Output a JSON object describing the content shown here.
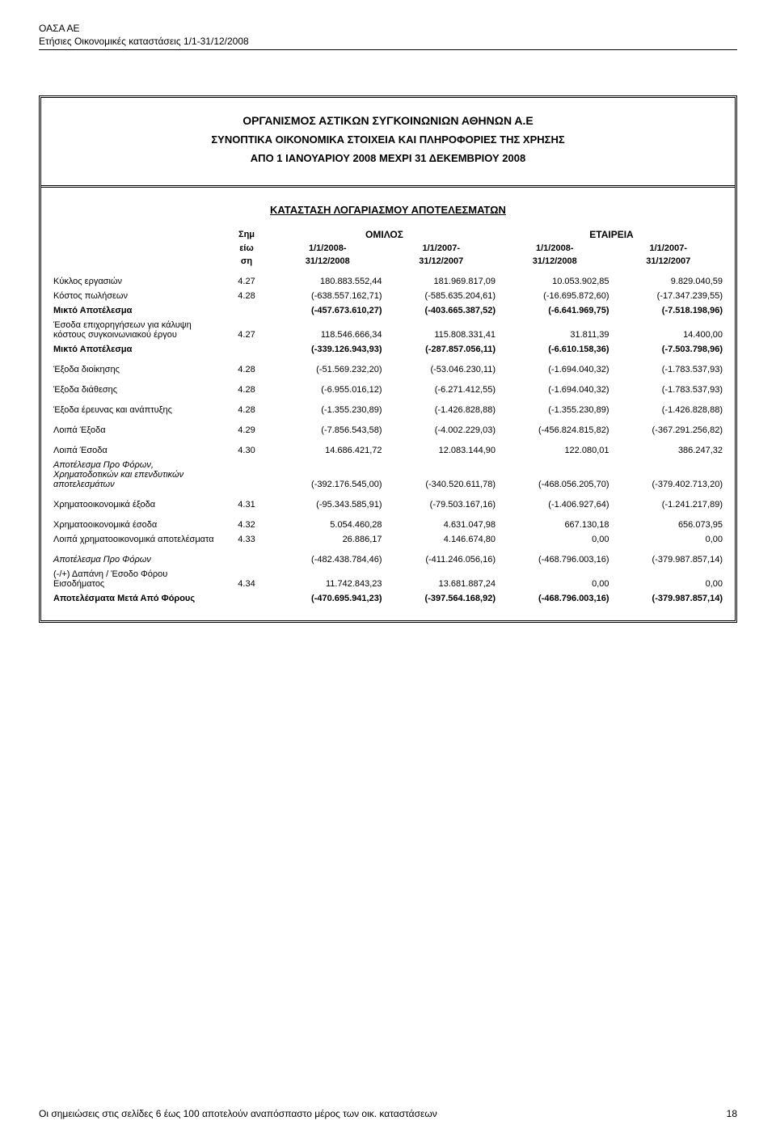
{
  "header": {
    "company": "ΟΑΣΑ ΑΕ",
    "subtitle": "Ετήσιες Οικονομικές καταστάσεις 1/1-31/12/2008"
  },
  "title_block": {
    "t1": "ΟΡΓΑΝΙΣΜΟΣ ΑΣΤΙΚΩΝ ΣΥΓΚΟΙΝΩΝΙΩΝ ΑΘΗΝΩΝ Α.Ε",
    "t2": "ΣΥΝΟΠΤΙΚΑ ΟΙΚΟΝΟΜΙΚΑ ΣΤΟΙΧΕΙΑ ΚΑΙ ΠΛΗΡΟΦΟΡΙΕΣ ΤΗΣ ΧΡΗΣΗΣ",
    "t3": "ΑΠΟ 1 ΙΑΝΟΥΑΡΙΟΥ 2008 ΜΕΧΡΙ 31 ΔΕΚΕΜΒΡΙΟΥ 2008"
  },
  "section_title": "ΚΑΤΑΣΤΑΣΗ ΛΟΓΑΡΙΑΣΜΟΥ ΑΠΟΤΕΛΕΣΜΑΤΩΝ",
  "columns": {
    "note_label_1": "Σημ",
    "note_label_2": "είω",
    "note_label_3": "ση",
    "group1": "ΟΜΙΛΟΣ",
    "group2": "ΕΤΑΙΡΕΙΑ",
    "p1a": "1/1/2008-",
    "p1b": "31/12/2008",
    "p2a": "1/1/2007-",
    "p2b": "31/12/2007",
    "p3a": "1/1/2008-",
    "p3b": "31/12/2008",
    "p4a": "1/1/2007-",
    "p4b": "31/12/2007"
  },
  "rows": [
    {
      "label": "Κύκλος εργασιών",
      "note": "4.27",
      "v1": "180.883.552,44",
      "v2": "181.969.817,09",
      "v3": "10.053.902,85",
      "v4": "9.829.040,59"
    },
    {
      "label": "Κόστος πωλήσεων",
      "note": "4.28",
      "v1": "(-638.557.162,71)",
      "v2": "(-585.635.204,61)",
      "v3": "(-16.695.872,60)",
      "v4": "(-17.347.239,55)"
    },
    {
      "label": "Μικτό Αποτέλεσμα",
      "note": "",
      "v1": "(-457.673.610,27)",
      "v2": "(-403.665.387,52)",
      "v3": "(-6.641.969,75)",
      "v4": "(-7.518.198,96)",
      "bold": true
    },
    {
      "label": "Έσοδα επιχορηγήσεων για κάλυψη κόστους συγκοινωνιακού έργου",
      "note": "4.27",
      "v1": "118.546.666,34",
      "v2": "115.808.331,41",
      "v3": "31.811,39",
      "v4": "14.400,00"
    },
    {
      "label": "Μικτό Αποτέλεσμα",
      "note": "",
      "v1": "(-339.126.943,93)",
      "v2": "(-287.857.056,11)",
      "v3": "(-6.610.158,36)",
      "v4": "(-7.503.798,96)",
      "bold": true
    },
    {
      "label": "Έξοδα διοίκησης",
      "note": "4.28",
      "v1": "(-51.569.232,20)",
      "v2": "(-53.046.230,11)",
      "v3": "(-1.694.040,32)",
      "v4": "(-1.783.537,93)",
      "spacer": true
    },
    {
      "label": "Έξοδα  διάθεσης",
      "note": "4.28",
      "v1": "(-6.955.016,12)",
      "v2": "(-6.271.412,55)",
      "v3": "(-1.694.040,32)",
      "v4": "(-1.783.537,93)",
      "spacer": true
    },
    {
      "label": "Έξοδα έρευνας και ανάπτυξης",
      "note": "4.28",
      "v1": "(-1.355.230,89)",
      "v2": "(-1.426.828,88)",
      "v3": "(-1.355.230,89)",
      "v4": "(-1.426.828,88)",
      "spacer": true
    },
    {
      "label": "Λοιπά Έξοδα",
      "note": "4.29",
      "v1": "(-7.856.543,58)",
      "v2": "(-4.002.229,03)",
      "v3": "(-456.824.815,82)",
      "v4": "(-367.291.256,82)",
      "spacer": true
    },
    {
      "label": "Λοιπά Έσοδα",
      "note": "4.30",
      "v1": "14.686.421,72",
      "v2": "12.083.144,90",
      "v3": "122.080,01",
      "v4": "386.247,32",
      "spacer": true
    },
    {
      "label": "Αποτέλεσμα Προ Φόρων, Χρηματοδοτικών και επενδυτικών αποτελεσμάτων",
      "note": "",
      "v1": "(-392.176.545,00)",
      "v2": "(-340.520.611,78)",
      "v3": "(-468.056.205,70)",
      "v4": "(-379.402.713,20)",
      "italic": true
    },
    {
      "label": "Χρηματοοικονομικά έξοδα",
      "note": "4.31",
      "v1": "(-95.343.585,91)",
      "v2": "(-79.503.167,16)",
      "v3": "(-1.406.927,64)",
      "v4": "(-1.241.217,89)",
      "spacer": true
    },
    {
      "label": "Χρηματοοικονομικά έσοδα",
      "note": "4.32",
      "v1": "5.054.460,28",
      "v2": "4.631.047,98",
      "v3": "667.130,18",
      "v4": "656.073,95",
      "spacer": true
    },
    {
      "label": "Λοιπά χρηματοοικονομικά αποτελέσματα",
      "note": "4.33",
      "v1": "26.886,17",
      "v2": "4.146.674,80",
      "v3": "0,00",
      "v4": "0,00"
    },
    {
      "label": "Αποτέλεσμα  Προ Φόρων",
      "note": "",
      "v1": "(-482.438.784,46)",
      "v2": "(-411.246.056,16)",
      "v3": "(-468.796.003,16)",
      "v4": "(-379.987.857,14)",
      "italic": true,
      "spacer": true
    },
    {
      "label": " (-/+) Δαπάνη / Έσοδο Φόρου Εισοδήματος",
      "note": "4.34",
      "v1": "11.742.843,23",
      "v2": "13.681.887,24",
      "v3": "0,00",
      "v4": "0,00"
    },
    {
      "label": "Αποτελέσματα Μετά Από Φόρους",
      "note": "",
      "v1": "(-470.695.941,23)",
      "v2": "(-397.564.168,92)",
      "v3": "(-468.796.003,16)",
      "v4": "(-379.987.857,14)",
      "bold": true
    }
  ],
  "footer": {
    "note": "Οι σημειώσεις στις σελίδες 6  έως 100 αποτελούν αναπόσπαστο μέρος των οικ. καταστάσεων",
    "page": "18"
  },
  "style": {
    "background_color": "#ffffff",
    "text_color": "#000000",
    "border_color": "#000000",
    "font_family": "Arial",
    "base_fontsize": 11,
    "header_fontsize": 12,
    "title_fontsize": 14
  }
}
